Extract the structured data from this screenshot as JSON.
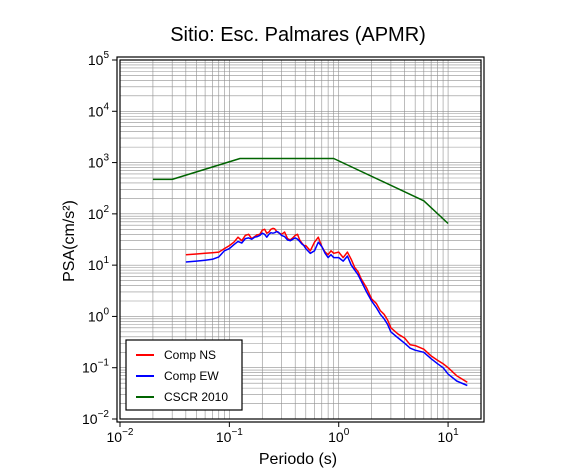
{
  "chart_data": {
    "type": "line",
    "title": "Sitio: Esc. Palmares (APMR)",
    "xlabel": "Periodo (s)",
    "ylabel": "PSA(cm/s²)",
    "x_scale": "log",
    "y_scale": "log",
    "xlim": [
      0.01,
      20
    ],
    "ylim": [
      0.01,
      100000
    ],
    "x_ticks": [
      0.01,
      0.1,
      1,
      10
    ],
    "y_ticks": [
      0.01,
      0.1,
      1,
      10,
      100,
      1000,
      10000,
      100000
    ],
    "x_tick_labels": [
      {
        "base": "10",
        "exp": "−2"
      },
      {
        "base": "10",
        "exp": "−1"
      },
      {
        "base": "10",
        "exp": "0"
      },
      {
        "base": "10",
        "exp": "1"
      }
    ],
    "y_tick_labels": [
      {
        "base": "10",
        "exp": "−2"
      },
      {
        "base": "10",
        "exp": "−1"
      },
      {
        "base": "10",
        "exp": "0"
      },
      {
        "base": "10",
        "exp": "1"
      },
      {
        "base": "10",
        "exp": "2"
      },
      {
        "base": "10",
        "exp": "3"
      },
      {
        "base": "10",
        "exp": "4"
      },
      {
        "base": "10",
        "exp": "5"
      }
    ],
    "grid": true,
    "legend_position": "bottom-left",
    "series": [
      {
        "name": "Comp NS",
        "color": "#ff0000",
        "x": [
          0.04,
          0.05,
          0.06,
          0.07,
          0.08,
          0.09,
          0.1,
          0.11,
          0.12,
          0.13,
          0.14,
          0.15,
          0.16,
          0.17,
          0.18,
          0.19,
          0.2,
          0.21,
          0.22,
          0.23,
          0.24,
          0.25,
          0.26,
          0.27,
          0.28,
          0.3,
          0.32,
          0.34,
          0.36,
          0.38,
          0.4,
          0.42,
          0.44,
          0.46,
          0.48,
          0.5,
          0.55,
          0.6,
          0.65,
          0.7,
          0.75,
          0.8,
          0.85,
          0.9,
          1.0,
          1.1,
          1.2,
          1.3,
          1.4,
          1.5,
          1.6,
          1.8,
          2.0,
          2.2,
          2.4,
          2.6,
          2.8,
          3.0,
          3.5,
          4.0,
          4.5,
          5.0,
          6.0,
          7.0,
          8.0,
          9.0,
          10.0,
          12.0,
          15.0
        ],
        "y": [
          16,
          16.5,
          17,
          17.5,
          18,
          21,
          24,
          28,
          35,
          30,
          38,
          40,
          33,
          36,
          39,
          40,
          48,
          50,
          42,
          44,
          50,
          52,
          51,
          46,
          43,
          40,
          44,
          33,
          31,
          34,
          38,
          40,
          31,
          27,
          24,
          24,
          19,
          28,
          35,
          23,
          18,
          16,
          19,
          17,
          18,
          14,
          18,
          13,
          9,
          7.5,
          5.5,
          3.6,
          2.2,
          1.8,
          1.3,
          1.1,
          0.85,
          0.6,
          0.45,
          0.38,
          0.28,
          0.27,
          0.23,
          0.17,
          0.14,
          0.12,
          0.1,
          0.07,
          0.052
        ]
      },
      {
        "name": "Comp EW",
        "color": "#0000ff",
        "x": [
          0.04,
          0.05,
          0.06,
          0.07,
          0.08,
          0.09,
          0.1,
          0.11,
          0.12,
          0.13,
          0.14,
          0.15,
          0.16,
          0.17,
          0.18,
          0.19,
          0.2,
          0.21,
          0.22,
          0.23,
          0.24,
          0.25,
          0.26,
          0.27,
          0.28,
          0.3,
          0.32,
          0.34,
          0.36,
          0.38,
          0.4,
          0.42,
          0.44,
          0.46,
          0.48,
          0.5,
          0.55,
          0.6,
          0.65,
          0.7,
          0.75,
          0.8,
          0.85,
          0.9,
          1.0,
          1.1,
          1.2,
          1.3,
          1.4,
          1.5,
          1.6,
          1.8,
          2.0,
          2.2,
          2.4,
          2.6,
          2.8,
          3.0,
          3.5,
          4.0,
          4.5,
          5.0,
          6.0,
          7.0,
          8.0,
          9.0,
          10.0,
          12.0,
          15.0
        ],
        "y": [
          11.5,
          12,
          12.5,
          13,
          14.5,
          19,
          21,
          25,
          29,
          27,
          33,
          34,
          32,
          35,
          36,
          38,
          42,
          40,
          35,
          40,
          43,
          42,
          43,
          45,
          44,
          38,
          36,
          31,
          30,
          32,
          34,
          32,
          29,
          26,
          24,
          21,
          17,
          19,
          28,
          23,
          17,
          14,
          16,
          14,
          14,
          12,
          15,
          10,
          8,
          6.5,
          5,
          3,
          2,
          1.5,
          1.1,
          0.9,
          0.7,
          0.5,
          0.38,
          0.3,
          0.24,
          0.22,
          0.2,
          0.15,
          0.12,
          0.1,
          0.075,
          0.055,
          0.045
        ]
      },
      {
        "name": "CSCR 2010",
        "color": "#006400",
        "x": [
          0.02,
          0.03,
          0.125,
          0.9,
          6.0,
          10.0
        ],
        "y": [
          470,
          470,
          1200,
          1200,
          180,
          65
        ]
      }
    ]
  }
}
